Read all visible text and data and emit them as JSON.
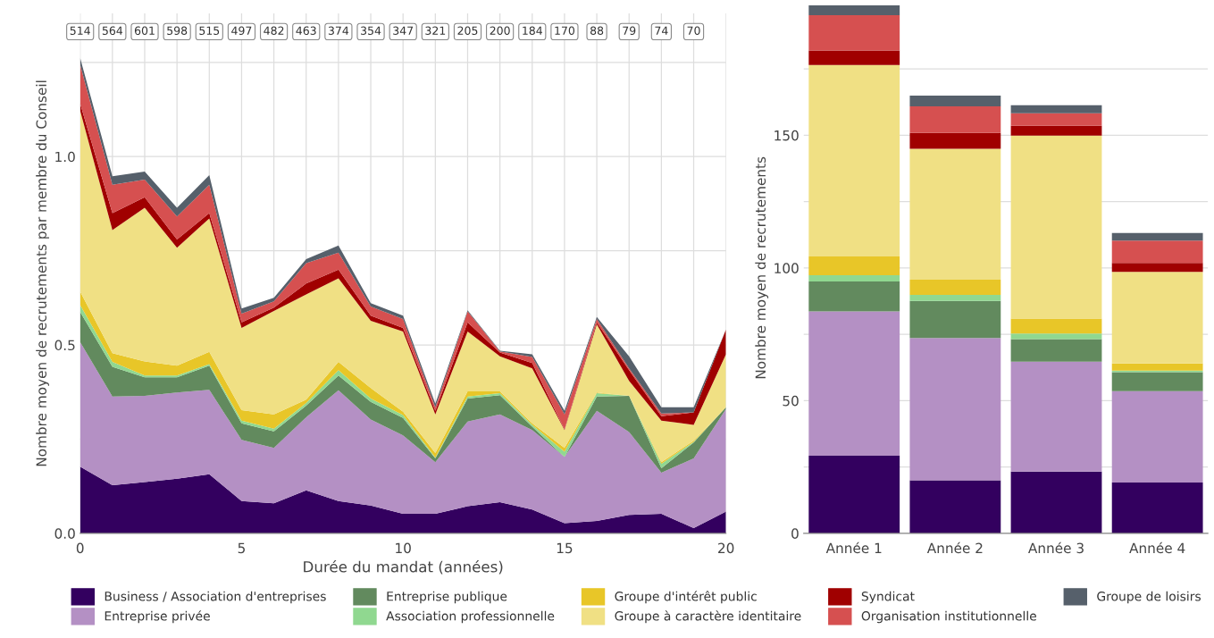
{
  "chart_data": [
    {
      "type": "area",
      "stacked": true,
      "xlabel": "Durée du mandat (années)",
      "ylabel": "Nombre moyen de recrutements par membre du Conseil",
      "x": [
        0,
        1,
        2,
        3,
        4,
        5,
        6,
        7,
        8,
        9,
        10,
        11,
        12,
        13,
        14,
        15,
        16,
        17,
        18,
        19,
        20
      ],
      "xlim": [
        0,
        20
      ],
      "xticks": [
        0,
        {
          "value": 1,
          "label": null
        },
        {
          "value": 2,
          "label": null
        },
        {
          "value": 3,
          "label": null
        },
        {
          "value": 4,
          "label": null
        },
        5,
        {
          "value": 6,
          "label": null
        },
        {
          "value": 7,
          "label": null
        },
        {
          "value": 8,
          "label": null
        },
        {
          "value": 9,
          "label": null
        },
        10,
        {
          "value": 11,
          "label": null
        },
        {
          "value": 12,
          "label": null
        },
        {
          "value": 13,
          "label": null
        },
        {
          "value": 14,
          "label": null
        },
        15,
        {
          "value": 16,
          "label": null
        },
        {
          "value": 17,
          "label": null
        },
        {
          "value": 18,
          "label": null
        },
        {
          "value": 19,
          "label": null
        },
        20
      ],
      "ylim": [
        0,
        1.38
      ],
      "yticks": [
        {
          "value": 0,
          "label": "0.0"
        },
        {
          "value": 0.25,
          "label": null
        },
        {
          "value": 0.5,
          "label": "0.5"
        },
        {
          "value": 0.75,
          "label": null
        },
        {
          "value": 1,
          "label": "1.0"
        },
        {
          "value": 1.25,
          "label": null
        }
      ],
      "grid": true,
      "legend": "bottom",
      "annotations": [
        {
          "text": "514",
          "x": 0
        },
        {
          "text": "564",
          "x": 1
        },
        {
          "text": "601",
          "x": 2
        },
        {
          "text": "598",
          "x": 3
        },
        {
          "text": "515",
          "x": 4
        },
        {
          "text": "497",
          "x": 5
        },
        {
          "text": "482",
          "x": 6
        },
        {
          "text": "463",
          "x": 7
        },
        {
          "text": "374",
          "x": 8
        },
        {
          "text": "354",
          "x": 9
        },
        {
          "text": "347",
          "x": 10
        },
        {
          "text": "321",
          "x": 11
        },
        {
          "text": "205",
          "x": 12
        },
        {
          "text": "200",
          "x": 13
        },
        {
          "text": "184",
          "x": 14
        },
        {
          "text": "170",
          "x": 15
        },
        {
          "text": "88",
          "x": 16
        },
        {
          "text": "79",
          "x": 17
        },
        {
          "text": "74",
          "x": 18
        },
        {
          "text": "70",
          "x": 19
        }
      ],
      "series": [
        {
          "name": "Business / Association d'entreprises",
          "color": "#33005f",
          "values": [
            0.177,
            0.128,
            0.136,
            0.145,
            0.157,
            0.086,
            0.08,
            0.114,
            0.086,
            0.074,
            0.052,
            0.052,
            0.072,
            0.083,
            0.063,
            0.027,
            0.033,
            0.049,
            0.052,
            0.014,
            0.058
          ]
        },
        {
          "name": "Entreprise privée",
          "color": "#b490c4",
          "values": [
            0.331,
            0.235,
            0.229,
            0.229,
            0.224,
            0.162,
            0.147,
            0.194,
            0.294,
            0.228,
            0.208,
            0.137,
            0.225,
            0.233,
            0.211,
            0.176,
            0.292,
            0.22,
            0.109,
            0.185,
            0.272
          ]
        },
        {
          "name": "Entreprise publique",
          "color": "#628a5e",
          "values": [
            0.08,
            0.079,
            0.049,
            0.04,
            0.064,
            0.044,
            0.044,
            0.031,
            0.039,
            0.047,
            0.046,
            0.01,
            0.061,
            0.051,
            0.009,
            0,
            0.038,
            0.096,
            0.012,
            0.042,
            0.005
          ]
        },
        {
          "name": "Association professionnelle",
          "color": "#90d890",
          "values": [
            0.018,
            0.013,
            0.005,
            0.005,
            0.004,
            0.007,
            0.007,
            0.007,
            0.014,
            0.009,
            0.008,
            0.002,
            0.005,
            0.005,
            0.005,
            0.014,
            0.009,
            0,
            0.012,
            0.002,
            0
          ]
        },
        {
          "name": "Groupe d'intérêt public",
          "color": "#e8c628",
          "values": [
            0.036,
            0.023,
            0.037,
            0.026,
            0.033,
            0.028,
            0.038,
            0.009,
            0.022,
            0.028,
            0.009,
            0.012,
            0.014,
            0.005,
            0.004,
            0.01,
            0.002,
            0,
            0.004,
            0.003,
            0
          ]
        },
        {
          "name": "Groupe à caractère identitaire",
          "color": "#f0e084",
          "values": [
            0.48,
            0.327,
            0.408,
            0.313,
            0.354,
            0.218,
            0.274,
            0.279,
            0.222,
            0.178,
            0.213,
            0.103,
            0.159,
            0.093,
            0.146,
            0.047,
            0.181,
            0.04,
            0.11,
            0.042,
            0.14
          ]
        },
        {
          "name": "Syndicat",
          "color": "#a00000",
          "values": [
            0.019,
            0.045,
            0.028,
            0.022,
            0.014,
            0.015,
            0.009,
            0.029,
            0.023,
            0.014,
            0.009,
            0.009,
            0.024,
            0.01,
            0.014,
            0.002,
            0.005,
            0.028,
            0.012,
            0.033,
            0.066
          ]
        },
        {
          "name": "Organisation institutionnelle",
          "color": "#d65050",
          "values": [
            0.103,
            0.075,
            0.047,
            0.061,
            0.075,
            0.023,
            0.017,
            0.054,
            0.045,
            0.024,
            0.024,
            0.01,
            0.029,
            0.003,
            0.016,
            0.04,
            0.009,
            0.005,
            0.007,
            0,
            0
          ]
        },
        {
          "name": "Groupe de loisirs",
          "color": "#56606b",
          "values": [
            0.018,
            0.023,
            0.021,
            0.023,
            0.026,
            0.014,
            0.009,
            0.011,
            0.019,
            0.009,
            0.009,
            0.009,
            0.003,
            0.002,
            0.007,
            0.009,
            0.005,
            0.032,
            0.017,
            0.014,
            0
          ]
        }
      ]
    },
    {
      "type": "bar",
      "stacked": true,
      "ylabel": "Nombre moyen de recrutements",
      "categories": [
        "Année 1",
        "Année 2",
        "Année 3",
        "Année 4"
      ],
      "ylim": [
        0,
        200
      ],
      "yticks": [
        0,
        {
          "value": 25,
          "label": null
        },
        50,
        {
          "value": 75,
          "label": null
        },
        100,
        {
          "value": 125,
          "label": null
        },
        150,
        {
          "value": 175,
          "label": null
        }
      ],
      "grid": "y",
      "series": [
        {
          "color": "#33005f",
          "values": [
            29.3,
            20.0,
            23.3,
            19.2
          ]
        },
        {
          "color": "#b490c4",
          "values": [
            54.3,
            53.6,
            41.4,
            34.4
          ]
        },
        {
          "color": "#628a5e",
          "values": [
            11.3,
            14.0,
            8.5,
            7.1
          ]
        },
        {
          "color": "#90d890",
          "values": [
            2.4,
            2.3,
            2.1,
            0.6
          ]
        },
        {
          "color": "#e8c628",
          "values": [
            7.0,
            5.7,
            5.6,
            2.7
          ]
        },
        {
          "color": "#f0e084",
          "values": [
            72.2,
            49.3,
            69.0,
            34.5
          ]
        },
        {
          "color": "#a00000",
          "values": [
            5.4,
            6.0,
            3.7,
            3.4
          ]
        },
        {
          "color": "#d65050",
          "values": [
            13.3,
            10.0,
            4.7,
            8.4
          ]
        },
        {
          "color": "#56606b",
          "values": [
            3.7,
            4.0,
            3.0,
            2.9
          ]
        }
      ]
    }
  ]
}
